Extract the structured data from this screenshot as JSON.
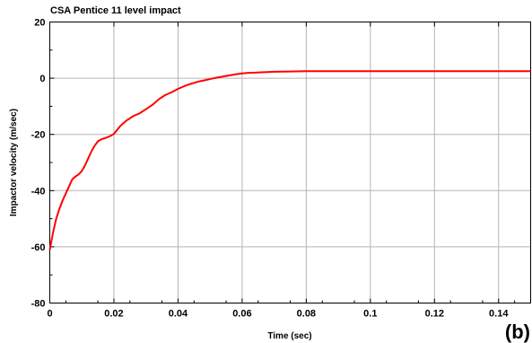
{
  "chart_data": {
    "type": "line",
    "title": "CSA Pentice 11 level impact",
    "xlabel": "Time (sec)",
    "ylabel": "Impactor velocity (m/sec)",
    "panel_label": "(b)",
    "xlim": [
      0,
      0.15
    ],
    "ylim": [
      -80,
      20
    ],
    "x_ticks": [
      0,
      0.02,
      0.04,
      0.06,
      0.08,
      0.1,
      0.12,
      0.14
    ],
    "x_tick_labels": [
      "0",
      "0.02",
      "0.04",
      "0.06",
      "0.08",
      "0.1",
      "0.12",
      "0.14"
    ],
    "y_ticks": [
      20,
      0,
      -20,
      -40,
      -60,
      -80
    ],
    "y_tick_labels": [
      "20",
      "0",
      "-20",
      "-40",
      "-60",
      "-80"
    ],
    "grid": true,
    "series": [
      {
        "color": "#ff0000",
        "x": [
          0,
          0.001,
          0.002,
          0.003,
          0.004,
          0.005,
          0.006,
          0.007,
          0.008,
          0.009,
          0.01,
          0.011,
          0.012,
          0.013,
          0.014,
          0.015,
          0.016,
          0.017,
          0.018,
          0.019,
          0.02,
          0.022,
          0.024,
          0.026,
          0.028,
          0.03,
          0.032,
          0.034,
          0.036,
          0.038,
          0.04,
          0.042,
          0.044,
          0.046,
          0.048,
          0.05,
          0.052,
          0.054,
          0.056,
          0.058,
          0.06,
          0.062,
          0.064,
          0.066,
          0.068,
          0.07,
          0.075,
          0.08,
          0.09,
          0.1,
          0.11,
          0.12,
          0.13,
          0.14,
          0.15
        ],
        "y": [
          -61.0,
          -55.0,
          -50.0,
          -46.5,
          -43.5,
          -41.0,
          -38.5,
          -36.0,
          -35.0,
          -34.2,
          -33.0,
          -31.0,
          -28.5,
          -26.0,
          -24.0,
          -22.5,
          -21.8,
          -21.4,
          -21.0,
          -20.5,
          -19.8,
          -17.0,
          -15.0,
          -13.5,
          -12.5,
          -11.0,
          -9.5,
          -7.5,
          -6.0,
          -5.0,
          -3.8,
          -2.8,
          -2.0,
          -1.3,
          -0.8,
          -0.3,
          0.2,
          0.6,
          1.0,
          1.4,
          1.7,
          1.9,
          2.0,
          2.1,
          2.2,
          2.3,
          2.4,
          2.5,
          2.5,
          2.5,
          2.5,
          2.5,
          2.5,
          2.5,
          2.5
        ]
      }
    ]
  }
}
